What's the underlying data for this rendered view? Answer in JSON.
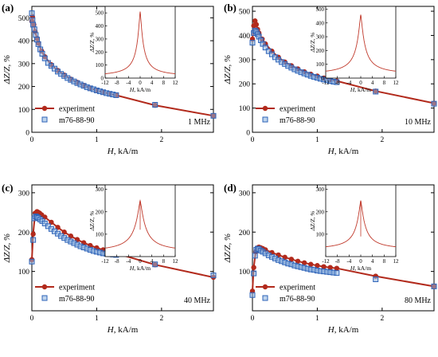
{
  "colors": {
    "experiment": "#b22a1c",
    "model": "#2e63b8",
    "model_fill": "#8ab0df",
    "inset_curve": "#c0392b"
  },
  "chart_data": [
    {
      "panel": "(a)",
      "type": "scatter",
      "frequency_label": "1 MHz",
      "xlabel_var": "H",
      "xlabel_unit": ", kA/m",
      "ylabel": "ΔZ/Z, %",
      "xlim": [
        0,
        2.8
      ],
      "ylim": [
        0,
        550
      ],
      "xticks": [
        0,
        1,
        2
      ],
      "yticks": [
        0,
        100,
        200,
        300,
        400,
        500
      ],
      "legend": [
        "experiment",
        "m76-88-90"
      ],
      "series": [
        {
          "name": "experiment",
          "x": [
            0,
            0.01,
            0.03,
            0.05,
            0.08,
            0.1,
            0.15,
            0.2,
            0.3,
            0.4,
            0.5,
            0.6,
            0.7,
            0.8,
            0.9,
            1.0,
            1.1,
            1.2,
            1.3,
            1.9,
            2.8
          ],
          "y": [
            485,
            505,
            470,
            440,
            410,
            390,
            355,
            330,
            295,
            270,
            250,
            232,
            218,
            205,
            193,
            183,
            175,
            168,
            162,
            118,
            72
          ]
        },
        {
          "name": "m76-88-90",
          "x": [
            0,
            0.01,
            0.02,
            0.04,
            0.06,
            0.08,
            0.1,
            0.13,
            0.16,
            0.2,
            0.25,
            0.3,
            0.35,
            0.4,
            0.45,
            0.5,
            0.55,
            0.6,
            0.65,
            0.7,
            0.75,
            0.8,
            0.85,
            0.9,
            0.95,
            1.0,
            1.05,
            1.1,
            1.15,
            1.2,
            1.25,
            1.3,
            1.9,
            2.8
          ],
          "y": [
            520,
            490,
            470,
            450,
            425,
            405,
            385,
            362,
            343,
            323,
            303,
            290,
            278,
            265,
            255,
            246,
            237,
            229,
            222,
            215,
            209,
            203,
            197,
            192,
            188,
            183,
            179,
            175,
            171,
            168,
            165,
            162,
            120,
            72
          ]
        }
      ],
      "inset": {
        "xlabel_var": "H",
        "xlabel_unit": ", kA/m",
        "ylabel": "ΔZ/Z, %",
        "xlim": [
          -12,
          12
        ],
        "ylim": [
          0,
          550
        ],
        "xticks": [
          -12,
          -8,
          -4,
          0,
          4,
          8,
          12
        ],
        "yticks": [
          0,
          100,
          200,
          300,
          400,
          500
        ],
        "peak": 510,
        "tail": 12,
        "decay": 1.1,
        "dip": 0
      }
    },
    {
      "panel": "(b)",
      "type": "scatter",
      "frequency_label": "10 MHz",
      "xlabel_var": "H",
      "xlabel_unit": ", kA/m",
      "ylabel": "ΔZ/Z, %",
      "xlim": [
        0,
        2.8
      ],
      "ylim": [
        0,
        520
      ],
      "xticks": [
        0,
        1,
        2
      ],
      "yticks": [
        0,
        100,
        200,
        300,
        400,
        500
      ],
      "legend": [
        "experiment",
        "m76-88-90"
      ],
      "series": [
        {
          "name": "experiment",
          "x": [
            0,
            0.02,
            0.04,
            0.06,
            0.08,
            0.1,
            0.15,
            0.2,
            0.3,
            0.4,
            0.5,
            0.6,
            0.7,
            0.8,
            0.9,
            1.0,
            1.1,
            1.2,
            1.3,
            1.9,
            2.8
          ],
          "y": [
            385,
            440,
            460,
            445,
            425,
            410,
            385,
            365,
            335,
            310,
            290,
            275,
            262,
            250,
            240,
            232,
            224,
            218,
            212,
            170,
            120
          ]
        },
        {
          "name": "m76-88-90",
          "x": [
            0,
            0.02,
            0.04,
            0.06,
            0.08,
            0.1,
            0.13,
            0.16,
            0.2,
            0.25,
            0.3,
            0.35,
            0.4,
            0.45,
            0.5,
            0.55,
            0.6,
            0.65,
            0.7,
            0.75,
            0.8,
            0.85,
            0.9,
            0.95,
            1.0,
            1.05,
            1.1,
            1.15,
            1.2,
            1.25,
            1.3,
            1.9,
            2.8
          ],
          "y": [
            370,
            410,
            420,
            415,
            405,
            395,
            380,
            365,
            350,
            335,
            322,
            310,
            300,
            290,
            282,
            274,
            267,
            260,
            254,
            248,
            243,
            238,
            233,
            229,
            225,
            221,
            218,
            215,
            212,
            209,
            207,
            168,
            118
          ]
        }
      ],
      "inset": {
        "xlabel_var": "H",
        "xlabel_unit": ", kA/m",
        "ylabel": "ΔZ/Z, %",
        "xlim": [
          -12,
          12
        ],
        "ylim": [
          0,
          520
        ],
        "xticks": [
          -12,
          -8,
          -4,
          0,
          4,
          8,
          12
        ],
        "yticks": [
          0,
          100,
          200,
          300,
          400,
          500
        ],
        "peak": 460,
        "tail": 25,
        "decay": 1.4,
        "dip": 0
      }
    },
    {
      "panel": "(c)",
      "type": "scatter",
      "frequency_label": "40 MHz",
      "xlabel_var": "H",
      "xlabel_unit": ", kA/m",
      "ylabel": "ΔZ/Z, %",
      "xlim": [
        0,
        2.8
      ],
      "ylim": [
        0,
        320
      ],
      "xticks": [
        0,
        1,
        2
      ],
      "yticks": [
        100,
        200,
        300
      ],
      "legend": [
        "experiment",
        "m76-88-90"
      ],
      "series": [
        {
          "name": "experiment",
          "x": [
            0,
            0.02,
            0.05,
            0.08,
            0.1,
            0.12,
            0.15,
            0.2,
            0.3,
            0.4,
            0.5,
            0.6,
            0.7,
            0.8,
            0.9,
            1.0,
            1.1,
            1.2,
            1.3,
            1.9,
            2.8
          ],
          "y": [
            130,
            195,
            248,
            252,
            250,
            248,
            244,
            238,
            225,
            212,
            200,
            190,
            181,
            173,
            166,
            160,
            155,
            150,
            146,
            117,
            85
          ]
        },
        {
          "name": "m76-88-90",
          "x": [
            0,
            0.02,
            0.04,
            0.06,
            0.08,
            0.1,
            0.13,
            0.16,
            0.2,
            0.25,
            0.3,
            0.35,
            0.4,
            0.45,
            0.5,
            0.55,
            0.6,
            0.65,
            0.7,
            0.75,
            0.8,
            0.85,
            0.9,
            0.95,
            1.0,
            1.05,
            1.1,
            1.15,
            1.2,
            1.25,
            1.3,
            1.9,
            2.8
          ],
          "y": [
            125,
            180,
            235,
            240,
            238,
            236,
            232,
            228,
            222,
            215,
            208,
            202,
            196,
            190,
            185,
            180,
            176,
            172,
            168,
            164,
            161,
            158,
            155,
            152,
            150,
            148,
            146,
            145,
            144,
            143,
            142,
            118,
            90
          ]
        }
      ],
      "inset": {
        "xlabel_var": "H",
        "xlabel_unit": ", kA/m",
        "ylabel": "ΔZ/Z, %",
        "xlim": [
          -12,
          12
        ],
        "ylim": [
          0,
          320
        ],
        "xticks": [
          -12,
          -8,
          -4,
          0,
          4,
          8,
          12
        ],
        "yticks": [
          100,
          200,
          300
        ],
        "peak": 250,
        "tail": 20,
        "decay": 1.8,
        "dip": 120
      }
    },
    {
      "panel": "(d)",
      "type": "scatter",
      "frequency_label": "80 MHz",
      "xlabel_var": "H",
      "xlabel_unit": ", kA/m",
      "ylabel": "ΔZ/Z, %",
      "xlim": [
        0,
        2.8
      ],
      "ylim": [
        0,
        320
      ],
      "xticks": [
        0,
        1,
        2
      ],
      "yticks": [
        100,
        200,
        300
      ],
      "legend": [
        "experiment",
        "m76-88-90"
      ],
      "series": [
        {
          "name": "experiment",
          "x": [
            0,
            0.02,
            0.05,
            0.08,
            0.1,
            0.13,
            0.16,
            0.2,
            0.3,
            0.4,
            0.5,
            0.6,
            0.7,
            0.8,
            0.9,
            1.0,
            1.1,
            1.2,
            1.3,
            1.9,
            2.8
          ],
          "y": [
            50,
            110,
            150,
            160,
            162,
            160,
            158,
            155,
            148,
            142,
            136,
            131,
            126,
            122,
            118,
            115,
            112,
            110,
            108,
            88,
            62
          ]
        },
        {
          "name": "m76-88-90",
          "x": [
            0,
            0.02,
            0.04,
            0.06,
            0.08,
            0.1,
            0.13,
            0.16,
            0.2,
            0.25,
            0.3,
            0.35,
            0.4,
            0.45,
            0.5,
            0.55,
            0.6,
            0.65,
            0.7,
            0.75,
            0.8,
            0.85,
            0.9,
            0.95,
            1.0,
            1.05,
            1.1,
            1.15,
            1.2,
            1.25,
            1.3,
            1.9,
            2.8
          ],
          "y": [
            40,
            95,
            140,
            155,
            158,
            157,
            153,
            150,
            146,
            141,
            137,
            133,
            129,
            126,
            123,
            120,
            118,
            115,
            113,
            111,
            109,
            107,
            105,
            104,
            102,
            101,
            100,
            99,
            98,
            97,
            96,
            80,
            62
          ]
        }
      ],
      "inset": {
        "xlabel_var": "H",
        "xlabel_unit": ", kA/m",
        "ylabel": "ΔZ/Z, %",
        "xlim": [
          -12,
          12
        ],
        "ylim": [
          0,
          320
        ],
        "xticks": [
          -12,
          -8,
          -4,
          0,
          4,
          8,
          12
        ],
        "yticks": [
          100,
          200,
          300
        ],
        "peak": 250,
        "tail": 30,
        "decay": 1.5,
        "dip": 90
      }
    }
  ]
}
